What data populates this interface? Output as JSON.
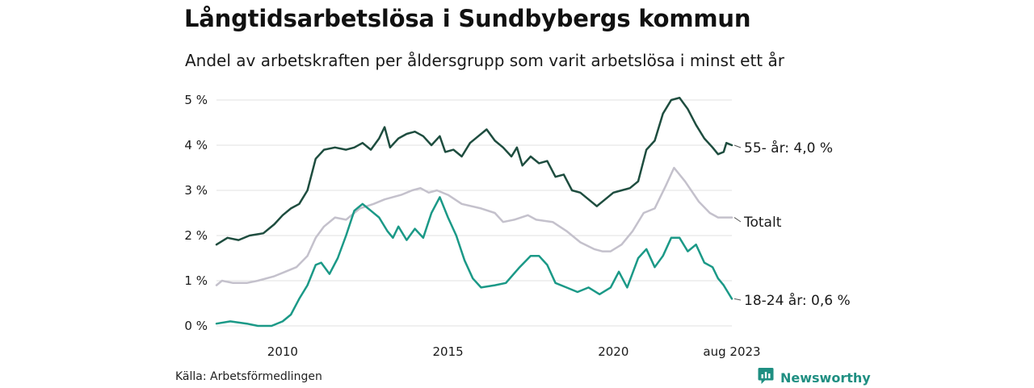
{
  "title": "Långtidsarbetslösa i Sundbybergs kommun",
  "subtitle": "Andel av arbetskraften per åldersgrupp som varit arbetslösa i minst ett år",
  "source": "Källa: Arbetsförmedlingen",
  "brand": "Newsworthy",
  "colors": {
    "series_55": "#1e4d3f",
    "series_total": "#c4c1cc",
    "series_18_24": "#1b9987",
    "grid": "#e0e0e0",
    "brand": "#1f8f82"
  },
  "chart_data": {
    "type": "line",
    "x_range": [
      "2008-01",
      "2023-08"
    ],
    "ylim": [
      0,
      5
    ],
    "y_ticks": [
      0,
      1,
      2,
      3,
      4,
      5
    ],
    "y_tick_labels": [
      "0 %",
      "1 %",
      "2 %",
      "3 %",
      "4 %",
      "5 %"
    ],
    "x_ticks": [
      "2010-01",
      "2015-01",
      "2020-01",
      "2023-08"
    ],
    "x_tick_labels": [
      "2010",
      "2015",
      "2020",
      "aug 2023"
    ],
    "grid": "horizontal",
    "legend": "end-labels",
    "series": [
      {
        "key": "s55",
        "label": "55- år: 4,0 %",
        "color": "#1e4d3f",
        "points": [
          [
            "2008-01",
            1.8
          ],
          [
            "2008-05",
            1.95
          ],
          [
            "2008-09",
            1.9
          ],
          [
            "2009-01",
            2.0
          ],
          [
            "2009-06",
            2.05
          ],
          [
            "2009-10",
            2.25
          ],
          [
            "2010-01",
            2.45
          ],
          [
            "2010-04",
            2.6
          ],
          [
            "2010-07",
            2.7
          ],
          [
            "2010-10",
            3.0
          ],
          [
            "2011-01",
            3.7
          ],
          [
            "2011-04",
            3.9
          ],
          [
            "2011-08",
            3.95
          ],
          [
            "2011-12",
            3.9
          ],
          [
            "2012-03",
            3.95
          ],
          [
            "2012-06",
            4.05
          ],
          [
            "2012-09",
            3.9
          ],
          [
            "2012-12",
            4.15
          ],
          [
            "2013-02",
            4.4
          ],
          [
            "2013-04",
            3.95
          ],
          [
            "2013-07",
            4.15
          ],
          [
            "2013-10",
            4.25
          ],
          [
            "2014-01",
            4.3
          ],
          [
            "2014-04",
            4.2
          ],
          [
            "2014-07",
            4.0
          ],
          [
            "2014-10",
            4.2
          ],
          [
            "2014-12",
            3.85
          ],
          [
            "2015-03",
            3.9
          ],
          [
            "2015-06",
            3.75
          ],
          [
            "2015-09",
            4.05
          ],
          [
            "2015-12",
            4.2
          ],
          [
            "2016-03",
            4.35
          ],
          [
            "2016-06",
            4.1
          ],
          [
            "2016-09",
            3.95
          ],
          [
            "2016-12",
            3.75
          ],
          [
            "2017-02",
            3.95
          ],
          [
            "2017-04",
            3.55
          ],
          [
            "2017-07",
            3.75
          ],
          [
            "2017-10",
            3.6
          ],
          [
            "2018-01",
            3.65
          ],
          [
            "2018-04",
            3.3
          ],
          [
            "2018-07",
            3.35
          ],
          [
            "2018-10",
            3.0
          ],
          [
            "2019-01",
            2.95
          ],
          [
            "2019-04",
            2.8
          ],
          [
            "2019-07",
            2.65
          ],
          [
            "2019-10",
            2.8
          ],
          [
            "2020-01",
            2.95
          ],
          [
            "2020-04",
            3.0
          ],
          [
            "2020-07",
            3.05
          ],
          [
            "2020-10",
            3.2
          ],
          [
            "2021-01",
            3.9
          ],
          [
            "2021-04",
            4.1
          ],
          [
            "2021-07",
            4.7
          ],
          [
            "2021-10",
            5.0
          ],
          [
            "2022-01",
            5.05
          ],
          [
            "2022-04",
            4.8
          ],
          [
            "2022-07",
            4.45
          ],
          [
            "2022-10",
            4.15
          ],
          [
            "2023-01",
            3.95
          ],
          [
            "2023-03",
            3.8
          ],
          [
            "2023-05",
            3.85
          ],
          [
            "2023-06",
            4.05
          ],
          [
            "2023-08",
            4.0
          ]
        ]
      },
      {
        "key": "total",
        "label": "Totalt",
        "color": "#c4c1cc",
        "points": [
          [
            "2008-01",
            0.9
          ],
          [
            "2008-03",
            1.0
          ],
          [
            "2008-07",
            0.95
          ],
          [
            "2008-12",
            0.95
          ],
          [
            "2009-04",
            1.0
          ],
          [
            "2009-10",
            1.1
          ],
          [
            "2010-02",
            1.2
          ],
          [
            "2010-06",
            1.3
          ],
          [
            "2010-10",
            1.55
          ],
          [
            "2011-01",
            1.95
          ],
          [
            "2011-04",
            2.2
          ],
          [
            "2011-08",
            2.4
          ],
          [
            "2011-12",
            2.35
          ],
          [
            "2012-05",
            2.6
          ],
          [
            "2012-10",
            2.7
          ],
          [
            "2013-02",
            2.8
          ],
          [
            "2013-08",
            2.9
          ],
          [
            "2013-12",
            3.0
          ],
          [
            "2014-03",
            3.05
          ],
          [
            "2014-06",
            2.95
          ],
          [
            "2014-09",
            3.0
          ],
          [
            "2015-01",
            2.9
          ],
          [
            "2015-06",
            2.7
          ],
          [
            "2016-01",
            2.6
          ],
          [
            "2016-06",
            2.5
          ],
          [
            "2016-09",
            2.3
          ],
          [
            "2017-01",
            2.35
          ],
          [
            "2017-06",
            2.45
          ],
          [
            "2017-09",
            2.35
          ],
          [
            "2018-03",
            2.3
          ],
          [
            "2018-08",
            2.1
          ],
          [
            "2019-01",
            1.85
          ],
          [
            "2019-06",
            1.7
          ],
          [
            "2019-09",
            1.65
          ],
          [
            "2019-12",
            1.65
          ],
          [
            "2020-04",
            1.8
          ],
          [
            "2020-08",
            2.1
          ],
          [
            "2020-12",
            2.5
          ],
          [
            "2021-04",
            2.6
          ],
          [
            "2021-08",
            3.1
          ],
          [
            "2021-11",
            3.5
          ],
          [
            "2022-03",
            3.2
          ],
          [
            "2022-08",
            2.75
          ],
          [
            "2022-12",
            2.5
          ],
          [
            "2023-03",
            2.4
          ],
          [
            "2023-08",
            2.4
          ]
        ]
      },
      {
        "key": "s18",
        "label": "18-24 år: 0,6 %",
        "color": "#1b9987",
        "points": [
          [
            "2008-01",
            0.05
          ],
          [
            "2008-06",
            0.1
          ],
          [
            "2008-12",
            0.05
          ],
          [
            "2009-04",
            0.0
          ],
          [
            "2009-09",
            0.0
          ],
          [
            "2010-01",
            0.1
          ],
          [
            "2010-04",
            0.25
          ],
          [
            "2010-07",
            0.6
          ],
          [
            "2010-10",
            0.9
          ],
          [
            "2011-01",
            1.35
          ],
          [
            "2011-03",
            1.4
          ],
          [
            "2011-06",
            1.15
          ],
          [
            "2011-09",
            1.5
          ],
          [
            "2011-12",
            2.0
          ],
          [
            "2012-03",
            2.55
          ],
          [
            "2012-06",
            2.7
          ],
          [
            "2012-09",
            2.55
          ],
          [
            "2012-12",
            2.4
          ],
          [
            "2013-03",
            2.1
          ],
          [
            "2013-05",
            1.95
          ],
          [
            "2013-07",
            2.2
          ],
          [
            "2013-10",
            1.9
          ],
          [
            "2014-01",
            2.15
          ],
          [
            "2014-04",
            1.95
          ],
          [
            "2014-07",
            2.5
          ],
          [
            "2014-10",
            2.85
          ],
          [
            "2015-01",
            2.4
          ],
          [
            "2015-04",
            2.0
          ],
          [
            "2015-07",
            1.45
          ],
          [
            "2015-10",
            1.05
          ],
          [
            "2016-01",
            0.85
          ],
          [
            "2016-06",
            0.9
          ],
          [
            "2016-10",
            0.95
          ],
          [
            "2017-03",
            1.3
          ],
          [
            "2017-07",
            1.55
          ],
          [
            "2017-10",
            1.55
          ],
          [
            "2018-01",
            1.35
          ],
          [
            "2018-04",
            0.95
          ],
          [
            "2018-08",
            0.85
          ],
          [
            "2018-12",
            0.75
          ],
          [
            "2019-04",
            0.85
          ],
          [
            "2019-08",
            0.7
          ],
          [
            "2019-12",
            0.85
          ],
          [
            "2020-03",
            1.2
          ],
          [
            "2020-06",
            0.85
          ],
          [
            "2020-10",
            1.5
          ],
          [
            "2021-01",
            1.7
          ],
          [
            "2021-04",
            1.3
          ],
          [
            "2021-07",
            1.55
          ],
          [
            "2021-10",
            1.95
          ],
          [
            "2022-01",
            1.95
          ],
          [
            "2022-04",
            1.65
          ],
          [
            "2022-07",
            1.8
          ],
          [
            "2022-10",
            1.4
          ],
          [
            "2023-01",
            1.3
          ],
          [
            "2023-03",
            1.05
          ],
          [
            "2023-05",
            0.9
          ],
          [
            "2023-08",
            0.6
          ]
        ]
      }
    ]
  }
}
